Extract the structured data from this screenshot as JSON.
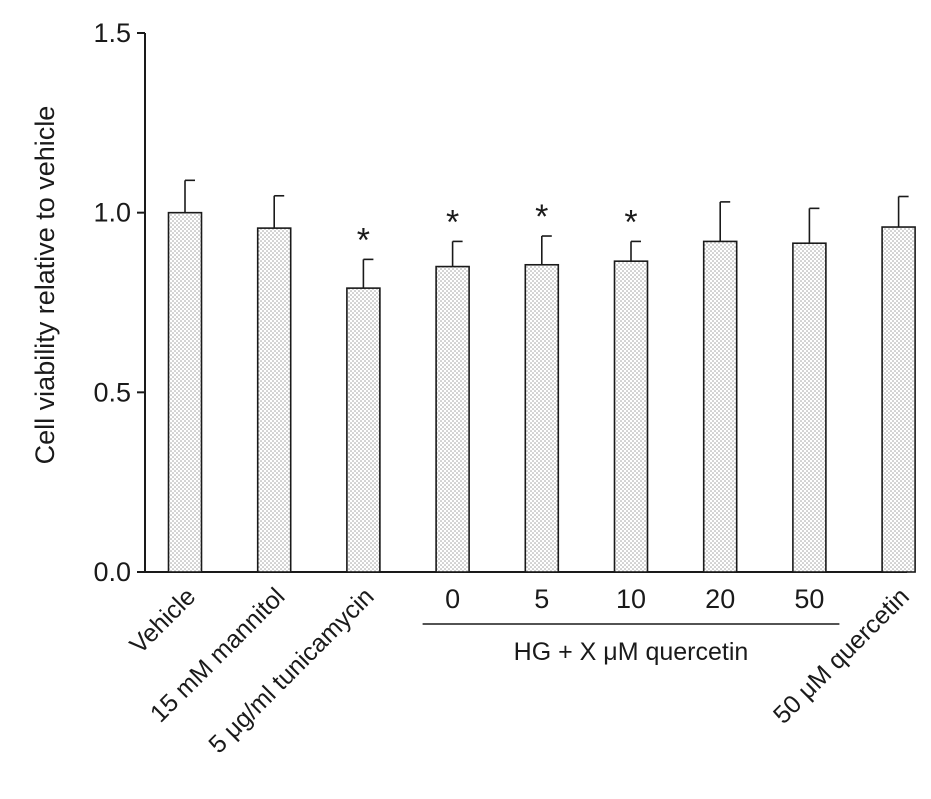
{
  "chart_data": {
    "type": "bar",
    "title": "",
    "xlabel": "",
    "ylabel": "Cell viability relative to vehicle",
    "ylim": [
      0,
      1.5
    ],
    "yticks": [
      0.0,
      0.5,
      1.0,
      1.5
    ],
    "ytick_labels": [
      "0.0",
      "0.5",
      "1.0",
      "1.5"
    ],
    "grid": false,
    "legend": "none",
    "bar_fill": "dotted light gray",
    "categories": [
      "Vehicle",
      "15 mM mannitol",
      "5 μg/ml tunicamycin",
      "0",
      "5",
      "10",
      "20",
      "50",
      "50 μM quercetin"
    ],
    "rotated": [
      true,
      true,
      true,
      false,
      false,
      false,
      false,
      false,
      true
    ],
    "values": [
      1.0,
      0.957,
      0.79,
      0.85,
      0.855,
      0.865,
      0.92,
      0.915,
      0.96
    ],
    "errors": [
      0.09,
      0.09,
      0.08,
      0.07,
      0.08,
      0.055,
      0.11,
      0.097,
      0.085
    ],
    "significance": [
      "",
      "",
      "*",
      "*",
      "*",
      "*",
      "",
      "",
      ""
    ],
    "group": {
      "label": "HG + X μM quercetin",
      "members": [
        3,
        4,
        5,
        6,
        7
      ]
    }
  }
}
